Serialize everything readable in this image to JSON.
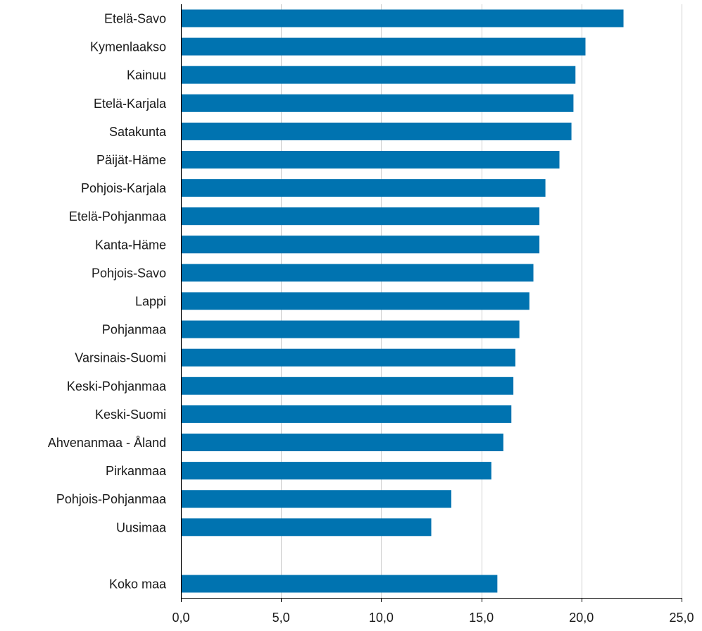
{
  "chart_data": {
    "type": "bar",
    "orientation": "horizontal",
    "title": "",
    "xlabel": "",
    "ylabel": "",
    "categories": [
      "Etelä-Savo",
      "Kymenlaakso",
      "Kainuu",
      "Etelä-Karjala",
      "Satakunta",
      "Päijät-Häme",
      "Pohjois-Karjala",
      "Etelä-Pohjanmaa",
      "Kanta-Häme",
      "Pohjois-Savo",
      "Lappi",
      "Pohjanmaa",
      "Varsinais-Suomi",
      "Keski-Pohjanmaa",
      "Keski-Suomi",
      "Ahvenanmaa - Åland",
      "Pirkanmaa",
      "Pohjois-Pohjanmaa",
      "Uusimaa",
      "",
      "Koko maa"
    ],
    "values": [
      22.1,
      20.2,
      19.7,
      19.6,
      19.5,
      18.9,
      18.2,
      17.9,
      17.9,
      17.6,
      17.4,
      16.9,
      16.7,
      16.6,
      16.5,
      16.1,
      15.5,
      13.5,
      12.5,
      null,
      15.8
    ],
    "xlim": [
      0,
      25
    ],
    "xticks": [
      0,
      5,
      10,
      15,
      20,
      25
    ],
    "xtick_labels": [
      "0,0",
      "5,0",
      "10,0",
      "15,0",
      "20,0",
      "25,0"
    ],
    "grid": "vertical",
    "legend": "none",
    "colors": {
      "bar": "#0073b0",
      "grid": "#d0d0d0",
      "axis": "#000000",
      "text": "#1a1a1a"
    }
  }
}
